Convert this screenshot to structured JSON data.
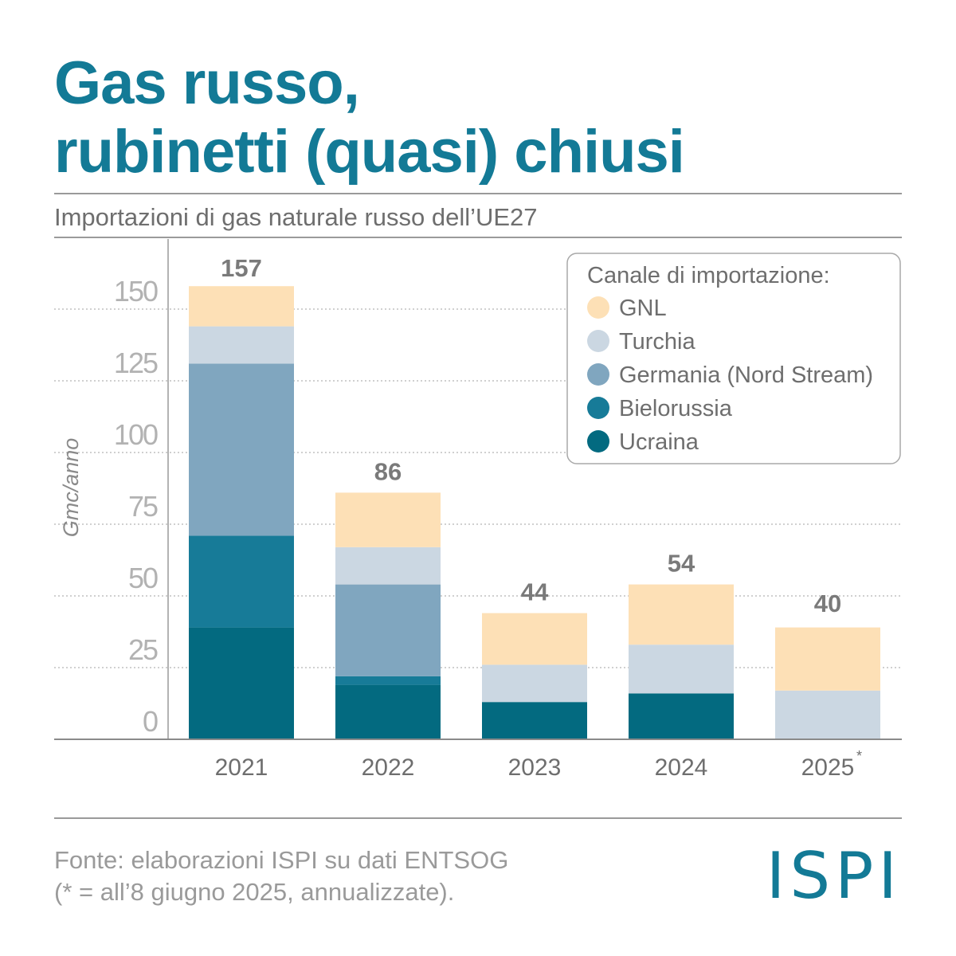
{
  "title_line1": "Gas russo,",
  "title_line2": "rubinetti (quasi) chiusi",
  "subtitle": "Importazioni di gas naturale russo dell’UE27",
  "source_line1": "Fonte: elaborazioni ISPI su dati ENTSOG",
  "source_line2": "(* = all’8 giugno 2025, annualizzate).",
  "logo": "ISPI",
  "colors": {
    "title": "#137a96",
    "GNL": "#fde0b6",
    "Turchia": "#cbd7e2",
    "Germania": "#80a6bf",
    "Bielorussia": "#177b98",
    "Ucraina": "#036a80"
  },
  "chart_data": {
    "type": "bar",
    "stacked": true,
    "categories": [
      "2021",
      "2022",
      "2023",
      "2024",
      "2025"
    ],
    "category_marks": [
      "",
      "",
      "",
      "",
      "*"
    ],
    "ylabel": "Gmc/anno",
    "ylim": [
      0,
      170
    ],
    "yticks": [
      0,
      25,
      50,
      75,
      100,
      125,
      150
    ],
    "grid": true,
    "totals": [
      157,
      86,
      44,
      54,
      40
    ],
    "legend_title": "Canale di importazione:",
    "legend_position": "top-right",
    "series": [
      {
        "name": "Ucraina",
        "values": [
          39,
          19,
          13,
          16,
          0
        ]
      },
      {
        "name": "Bielorussia",
        "values": [
          32,
          3,
          0,
          0,
          0
        ]
      },
      {
        "name": "Germania (Nord Stream)",
        "values": [
          60,
          32,
          0,
          0,
          0
        ]
      },
      {
        "name": "Turchia",
        "values": [
          13,
          13,
          13,
          17,
          17
        ]
      },
      {
        "name": "GNL",
        "values": [
          14,
          19,
          18,
          21,
          22
        ]
      }
    ]
  }
}
